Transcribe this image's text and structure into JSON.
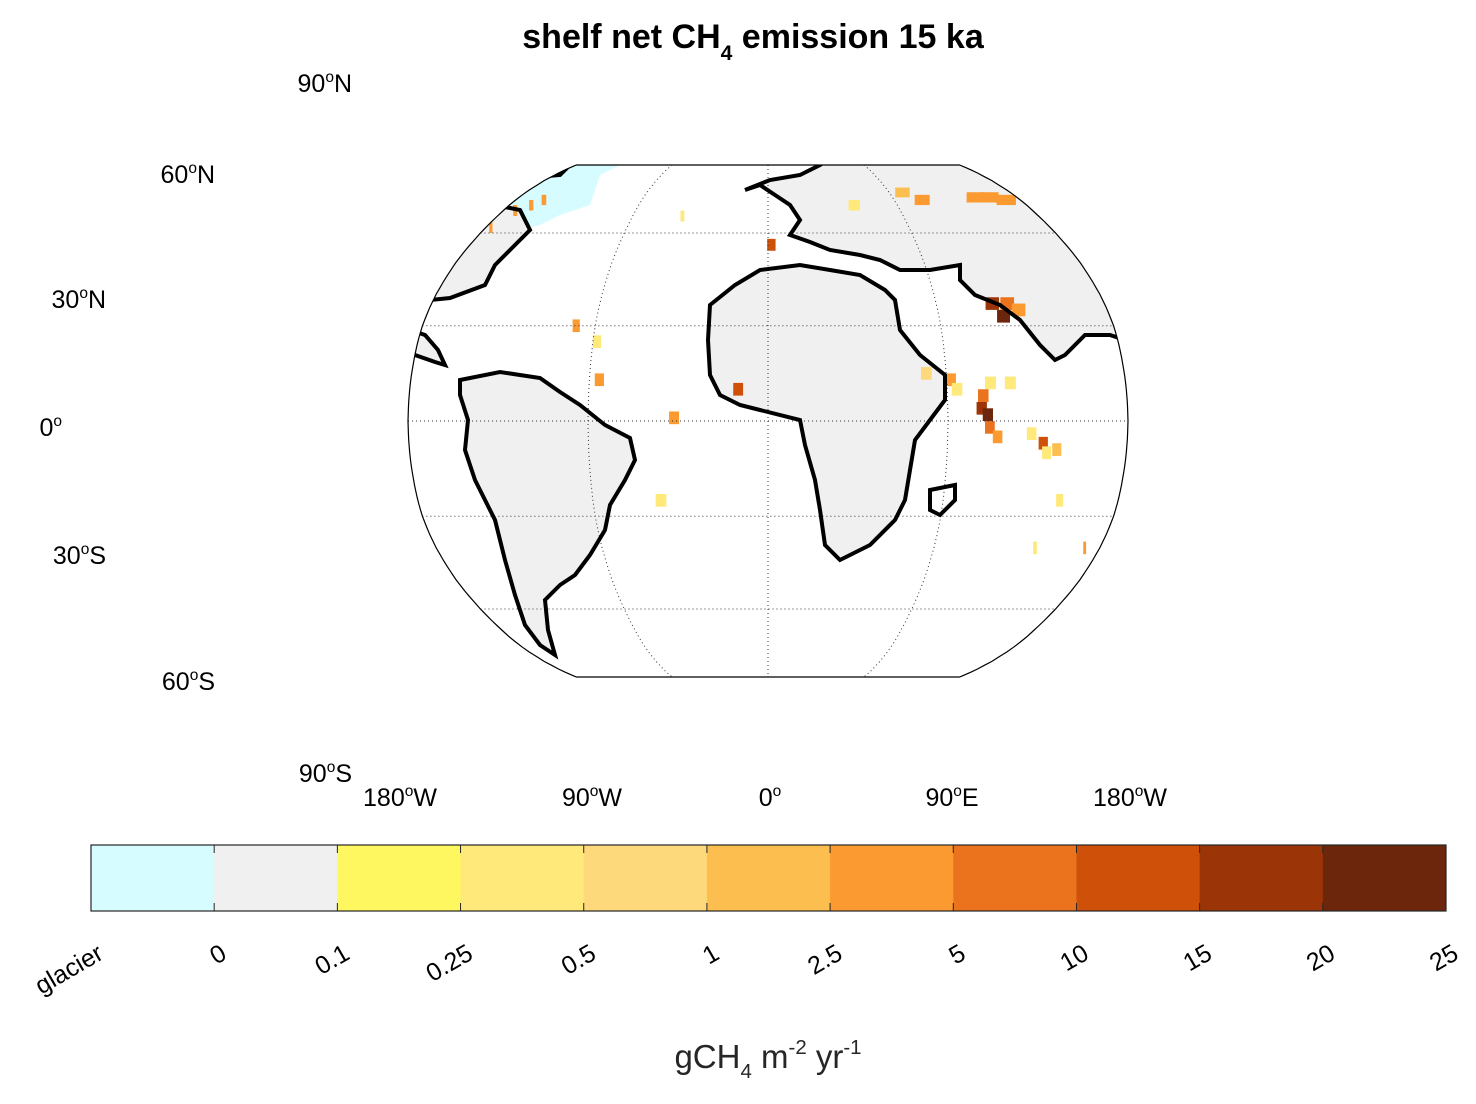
{
  "title": {
    "prefix": "shelf net CH",
    "sub": "4",
    "suffix": " emission 15 ka"
  },
  "latitude_labels": [
    {
      "deg": "90",
      "hemi": "N",
      "lat": 90
    },
    {
      "deg": "60",
      "hemi": "N",
      "lat": 60
    },
    {
      "deg": "30",
      "hemi": "N",
      "lat": 30
    },
    {
      "deg": "0",
      "hemi": "",
      "lat": 0
    },
    {
      "deg": "30",
      "hemi": "S",
      "lat": -30
    },
    {
      "deg": "60",
      "hemi": "S",
      "lat": -60
    },
    {
      "deg": "90",
      "hemi": "S",
      "lat": -90
    }
  ],
  "longitude_labels": [
    {
      "deg": "180",
      "hemi": "W",
      "lon": -180
    },
    {
      "deg": "90",
      "hemi": "W",
      "lon": -90
    },
    {
      "deg": "0",
      "hemi": "",
      "lon": 0
    },
    {
      "deg": "90",
      "hemi": "E",
      "lon": 90
    },
    {
      "deg": "180",
      "hemi": "W",
      "lon": 180
    }
  ],
  "colorbar": {
    "colors": [
      "#d7fcff",
      "#f0f0f0",
      "#fff760",
      "#fee97a",
      "#fdd97b",
      "#fcbe4f",
      "#fa9a30",
      "#ec731d",
      "#cf5009",
      "#9b3406",
      "#6b260c"
    ],
    "tick_labels": [
      "glacier",
      "0",
      "0.1",
      "0.25",
      "0.5",
      "1",
      "2.5",
      "5",
      "10",
      "15",
      "20",
      "25"
    ],
    "unit": {
      "base": "gCH",
      "sub": "4",
      "m": " m",
      "m_exp": "-2",
      "yr": " yr",
      "yr_exp": "-1"
    }
  },
  "chart_data": {
    "type": "heatmap",
    "projection": "Robinson",
    "title": "shelf net CH4 emission 15 ka",
    "colorbar_label": "gCH4 m-2 yr-1",
    "class_bounds": [
      "glacier",
      0,
      0.1,
      0.25,
      0.5,
      1,
      2.5,
      5,
      10,
      15,
      20,
      25
    ],
    "grid": true,
    "emission_cells": [
      {
        "lon": -172,
        "lat": 68,
        "cls": 6
      },
      {
        "lon": -177,
        "lat": 62,
        "cls": 6
      },
      {
        "lon": -165,
        "lat": 70,
        "cls": 6
      },
      {
        "lon": -160,
        "lat": 72,
        "cls": 6
      },
      {
        "lon": -57,
        "lat": 66,
        "cls": 3
      },
      {
        "lon": -100,
        "lat": 30,
        "cls": 6
      },
      {
        "lon": -88,
        "lat": 25,
        "cls": 3
      },
      {
        "lon": -85,
        "lat": 13,
        "cls": 6
      },
      {
        "lon": -47,
        "lat": 1,
        "cls": 6
      },
      {
        "lon": -55,
        "lat": -25,
        "cls": 3
      },
      {
        "lon": -15,
        "lat": 10,
        "cls": 8
      },
      {
        "lon": 2,
        "lat": 56,
        "cls": 8
      },
      {
        "lon": 60,
        "lat": 70,
        "cls": 3
      },
      {
        "lon": 100,
        "lat": 75,
        "cls": 5
      },
      {
        "lon": 110,
        "lat": 72,
        "cls": 6
      },
      {
        "lon": 150,
        "lat": 73,
        "cls": 6
      },
      {
        "lon": 160,
        "lat": 73,
        "cls": 6
      },
      {
        "lon": 170,
        "lat": 72,
        "cls": 6
      },
      {
        "lon": 120,
        "lat": 37,
        "cls": 9
      },
      {
        "lon": 124,
        "lat": 33,
        "cls": 10
      },
      {
        "lon": 128,
        "lat": 37,
        "cls": 7
      },
      {
        "lon": 133,
        "lat": 35,
        "cls": 6
      },
      {
        "lon": 80,
        "lat": 15,
        "cls": 4
      },
      {
        "lon": 92,
        "lat": 13,
        "cls": 6
      },
      {
        "lon": 95,
        "lat": 10,
        "cls": 3
      },
      {
        "lon": 112,
        "lat": 12,
        "cls": 3
      },
      {
        "lon": 108,
        "lat": 8,
        "cls": 7
      },
      {
        "lon": 107,
        "lat": 4,
        "cls": 9
      },
      {
        "lon": 110,
        "lat": 2,
        "cls": 10
      },
      {
        "lon": 111,
        "lat": -2,
        "cls": 7
      },
      {
        "lon": 115,
        "lat": -5,
        "cls": 6
      },
      {
        "lon": 122,
        "lat": 12,
        "cls": 3
      },
      {
        "lon": 132,
        "lat": -4,
        "cls": 3
      },
      {
        "lon": 138,
        "lat": -7,
        "cls": 8
      },
      {
        "lon": 145,
        "lat": -9,
        "cls": 5
      },
      {
        "lon": 140,
        "lat": -10,
        "cls": 3
      },
      {
        "lon": 150,
        "lat": -25,
        "cls": 3
      },
      {
        "lon": 145,
        "lat": -40,
        "cls": 3
      },
      {
        "lon": 172,
        "lat": -40,
        "cls": 6
      }
    ]
  }
}
